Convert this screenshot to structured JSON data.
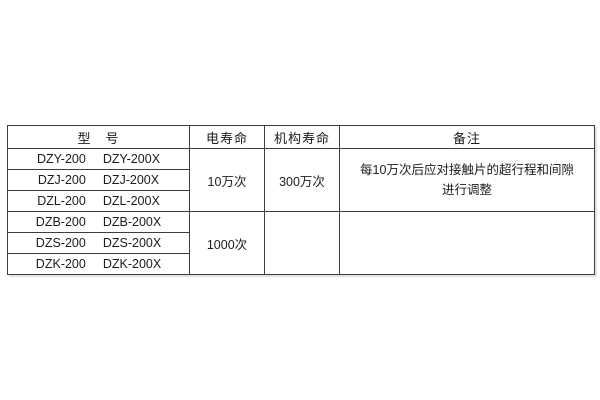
{
  "table": {
    "headers": {
      "model": "型　号",
      "electrical_life": "电寿命",
      "mechanical_life": "机构寿命",
      "remarks": "备注"
    },
    "model_rows": [
      {
        "a": "DZY-200",
        "b": "DZY-200X"
      },
      {
        "a": "DZJ-200",
        "b": "DZJ-200X"
      },
      {
        "a": "DZL-200",
        "b": "DZL-200X"
      },
      {
        "a": "DZB-200",
        "b": "DZB-200X"
      },
      {
        "a": "DZS-200",
        "b": "DZS-200X"
      },
      {
        "a": "DZK-200",
        "b": "DZK-200X"
      }
    ],
    "groups": [
      {
        "electrical_life": "10万次",
        "mechanical_life": "300万次",
        "remarks_line1": "每10万次后应对接触片的超行程和间隙",
        "remarks_line2": "进行调整"
      },
      {
        "electrical_life": "1000次",
        "mechanical_life": "",
        "remarks_line1": "",
        "remarks_line2": ""
      }
    ]
  },
  "colors": {
    "background": "#ffffff",
    "border": "#3d3d3d",
    "text": "#1c1c1c"
  }
}
